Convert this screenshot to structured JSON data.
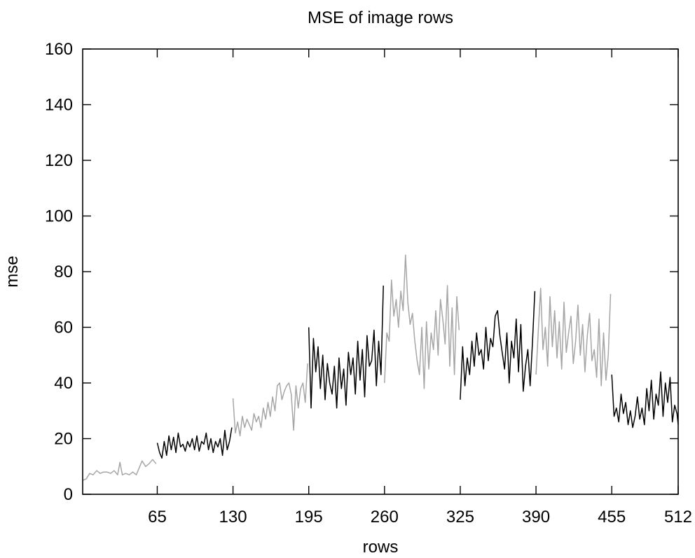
{
  "chart_data": {
    "type": "line",
    "title": "MSE of image rows",
    "xlabel": "rows",
    "ylabel": "mse",
    "xlim": [
      1,
      512
    ],
    "ylim": [
      0,
      160
    ],
    "xticks": [
      65,
      130,
      195,
      260,
      325,
      390,
      455,
      512
    ],
    "yticks": [
      0,
      20,
      40,
      60,
      80,
      100,
      120,
      140,
      160
    ],
    "grid": false,
    "colors": {
      "gray": "#a6a6a6",
      "black": "#000000"
    },
    "series": [
      {
        "color": "#a6a6a6",
        "x": [
          1,
          4,
          7,
          10,
          13,
          16,
          19,
          22,
          25,
          28,
          31,
          33,
          35,
          38,
          41,
          44,
          47,
          50,
          52,
          55,
          58,
          61,
          64
        ],
        "values": [
          5,
          5.5,
          7.5,
          7,
          8.5,
          7.5,
          8,
          8,
          7.5,
          8.5,
          7,
          11.5,
          7,
          7.5,
          7,
          8,
          7,
          10,
          12,
          10,
          11,
          12.5,
          11
        ]
      },
      {
        "color": "#000000",
        "x": [
          65,
          67,
          69,
          71,
          73,
          75,
          77,
          79,
          81,
          83,
          85,
          87,
          89,
          91,
          93,
          95,
          97,
          99,
          101,
          103,
          105,
          107,
          109,
          111,
          113,
          115,
          117,
          119,
          121,
          123,
          125,
          127,
          129
        ],
        "values": [
          18.5,
          15,
          13,
          19,
          14,
          21,
          16,
          20.5,
          15,
          22,
          17,
          18,
          15.5,
          19,
          17,
          20,
          16,
          21,
          15.5,
          19,
          18,
          22,
          16,
          20,
          15,
          19,
          17,
          20,
          14,
          23,
          16,
          19,
          24
        ]
      },
      {
        "color": "#a6a6a6",
        "x": [
          130,
          132,
          134,
          136,
          138,
          140,
          142,
          144,
          146,
          148,
          150,
          152,
          154,
          156,
          158,
          160,
          162,
          164,
          166,
          168,
          170,
          172,
          174,
          176,
          178,
          180,
          182,
          184,
          186,
          188,
          190,
          192,
          194
        ],
        "values": [
          34.5,
          22,
          26,
          21,
          28,
          24,
          27,
          25,
          23,
          29,
          26,
          28,
          24,
          31,
          27,
          33,
          28,
          35,
          30,
          39,
          40,
          34,
          37,
          39,
          40,
          36,
          23,
          39,
          31,
          38,
          40,
          33,
          47
        ]
      },
      {
        "color": "#000000",
        "x": [
          195,
          197,
          199,
          201,
          203,
          205,
          207,
          209,
          211,
          213,
          215,
          217,
          219,
          221,
          223,
          225,
          227,
          229,
          231,
          233,
          235,
          237,
          239,
          241,
          243,
          245,
          247,
          249,
          251,
          253,
          255,
          257,
          259
        ],
        "values": [
          60,
          31,
          56,
          44,
          53,
          38,
          50,
          34,
          47,
          40,
          36,
          46,
          31,
          49,
          38,
          45,
          32,
          51,
          43,
          49,
          36,
          55,
          41,
          52,
          35,
          57,
          46,
          48,
          59,
          39,
          55,
          43,
          75
        ]
      },
      {
        "color": "#a6a6a6",
        "x": [
          260,
          262,
          264,
          266,
          268,
          270,
          272,
          274,
          276,
          278,
          280,
          282,
          284,
          286,
          288,
          290,
          292,
          294,
          296,
          298,
          300,
          302,
          304,
          306,
          308,
          310,
          312,
          314,
          316,
          318,
          320,
          322,
          324
        ],
        "values": [
          40,
          58,
          55,
          77,
          64,
          70,
          60,
          73,
          66,
          86,
          69,
          61,
          65,
          55,
          48,
          43,
          60,
          38,
          62,
          45,
          58,
          52,
          66,
          50,
          70,
          63,
          54,
          75,
          46,
          67,
          43,
          71,
          59
        ]
      },
      {
        "color": "#000000",
        "x": [
          325,
          327,
          329,
          331,
          333,
          335,
          337,
          339,
          341,
          343,
          345,
          347,
          349,
          351,
          353,
          355,
          357,
          359,
          361,
          363,
          365,
          367,
          369,
          371,
          373,
          375,
          377,
          379,
          381,
          383,
          385,
          387,
          389
        ],
        "values": [
          34,
          53,
          39,
          49,
          43,
          55,
          46,
          58,
          50,
          52,
          45,
          60,
          48,
          56,
          53,
          64,
          66,
          57,
          51,
          45,
          58,
          40,
          55,
          49,
          63,
          44,
          61,
          37,
          46,
          52,
          39,
          55,
          73
        ]
      },
      {
        "color": "#a6a6a6",
        "x": [
          390,
          392,
          394,
          396,
          398,
          400,
          402,
          404,
          406,
          408,
          410,
          412,
          414,
          416,
          418,
          420,
          422,
          424,
          426,
          428,
          430,
          432,
          434,
          436,
          438,
          440,
          442,
          444,
          446,
          448,
          450,
          452,
          454
        ],
        "values": [
          43,
          59,
          74,
          52,
          60,
          46,
          71,
          53,
          66,
          49,
          62,
          45,
          69,
          51,
          58,
          64,
          47,
          55,
          68,
          50,
          61,
          44,
          57,
          65,
          48,
          52,
          42,
          63,
          39,
          58,
          41,
          50,
          72
        ]
      },
      {
        "color": "#000000",
        "x": [
          455,
          457,
          459,
          461,
          463,
          465,
          467,
          469,
          471,
          473,
          475,
          477,
          479,
          481,
          483,
          485,
          487,
          489,
          491,
          493,
          495,
          497,
          499,
          501,
          503,
          505,
          507,
          509,
          511,
          512
        ],
        "values": [
          43,
          28,
          31,
          26,
          36,
          29,
          33,
          25,
          30,
          24,
          28,
          35,
          27,
          31,
          25,
          38,
          30,
          41,
          27,
          36,
          32,
          44,
          28,
          40,
          33,
          42,
          26,
          32,
          29,
          25
        ]
      }
    ]
  }
}
